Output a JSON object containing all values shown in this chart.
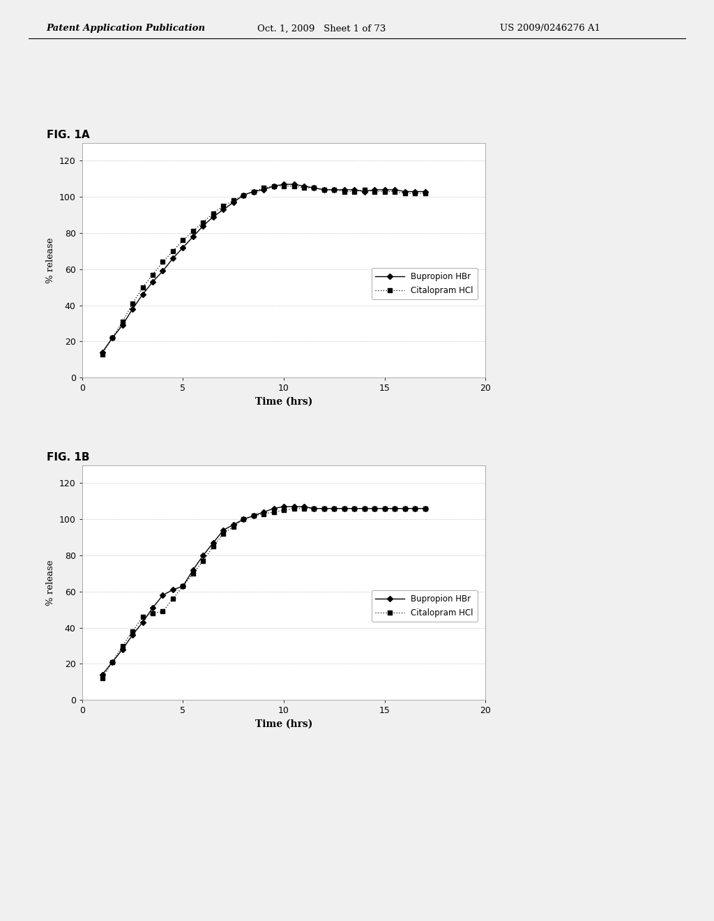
{
  "fig1A_label": "FIG. 1A",
  "fig1B_label": "FIG. 1B",
  "header_left": "Patent Application Publication",
  "header_center": "Oct. 1, 2009   Sheet 1 of 73",
  "header_right": "US 2009/0246276 A1",
  "chart1A": {
    "bupropion_x": [
      1,
      1.5,
      2,
      2.5,
      3,
      3.5,
      4,
      4.5,
      5,
      5.5,
      6,
      6.5,
      7,
      7.5,
      8,
      8.5,
      9,
      9.5,
      10,
      10.5,
      11,
      11.5,
      12,
      12.5,
      13,
      13.5,
      14,
      14.5,
      15,
      15.5,
      16,
      16.5,
      17
    ],
    "bupropion_y": [
      14,
      22,
      29,
      38,
      46,
      53,
      59,
      66,
      72,
      78,
      84,
      89,
      93,
      97,
      101,
      103,
      104,
      106,
      107,
      107,
      106,
      105,
      104,
      104,
      104,
      104,
      103,
      104,
      104,
      104,
      103,
      103,
      103
    ],
    "citalopram_x": [
      1,
      1.5,
      2,
      2.5,
      3,
      3.5,
      4,
      4.5,
      5,
      5.5,
      6,
      6.5,
      7,
      7.5,
      8,
      8.5,
      9,
      9.5,
      10,
      10.5,
      11,
      11.5,
      12,
      12.5,
      13,
      13.5,
      14,
      14.5,
      15,
      15.5,
      16,
      16.5,
      17
    ],
    "citalopram_y": [
      13,
      22,
      31,
      41,
      50,
      57,
      64,
      70,
      76,
      81,
      86,
      91,
      95,
      98,
      101,
      103,
      105,
      106,
      106,
      106,
      105,
      105,
      104,
      104,
      103,
      103,
      104,
      103,
      103,
      103,
      102,
      102,
      102
    ],
    "xlabel": "Time (hrs)",
    "ylabel": "% release",
    "xlim": [
      0,
      20
    ],
    "ylim": [
      0,
      130
    ],
    "yticks": [
      0,
      20,
      40,
      60,
      80,
      100,
      120
    ],
    "xticks": [
      0,
      5,
      10,
      15,
      20
    ],
    "legend1": "Bupropion HBr",
    "legend2": "Citalopram HCl"
  },
  "chart1B": {
    "bupropion_x": [
      1,
      1.5,
      2,
      2.5,
      3,
      3.5,
      4,
      4.5,
      5,
      5.5,
      6,
      6.5,
      7,
      7.5,
      8,
      8.5,
      9,
      9.5,
      10,
      10.5,
      11,
      11.5,
      12,
      12.5,
      13,
      13.5,
      14,
      14.5,
      15,
      15.5,
      16,
      16.5,
      17
    ],
    "bupropion_y": [
      14,
      21,
      28,
      36,
      43,
      51,
      58,
      61,
      63,
      72,
      80,
      87,
      94,
      97,
      100,
      102,
      104,
      106,
      107,
      107,
      107,
      106,
      106,
      106,
      106,
      106,
      106,
      106,
      106,
      106,
      106,
      106,
      106
    ],
    "citalopram_x": [
      1,
      1.5,
      2,
      2.5,
      3,
      3.5,
      4,
      4.5,
      5,
      5.5,
      6,
      6.5,
      7,
      7.5,
      8,
      8.5,
      9,
      9.5,
      10,
      10.5,
      11,
      11.5,
      12,
      12.5,
      13,
      13.5,
      14,
      14.5,
      15,
      15.5,
      16,
      16.5,
      17
    ],
    "citalopram_y": [
      12,
      21,
      30,
      38,
      46,
      48,
      49,
      56,
      63,
      70,
      77,
      85,
      92,
      96,
      100,
      102,
      103,
      104,
      105,
      106,
      106,
      106,
      106,
      106,
      106,
      106,
      106,
      106,
      106,
      106,
      106,
      106,
      106
    ],
    "xlabel": "Time (hrs)",
    "ylabel": "% release",
    "xlim": [
      0,
      20
    ],
    "ylim": [
      0,
      130
    ],
    "yticks": [
      0,
      20,
      40,
      60,
      80,
      100,
      120
    ],
    "xticks": [
      0,
      5,
      10,
      15,
      20
    ],
    "legend1": "Bupropion HBr",
    "legend2": "Citalopram HCl"
  },
  "page_bg": "#f0f0f0",
  "chart_bg": "#ffffff",
  "line_color": "#000000",
  "grid_color": "#b0b0b0",
  "border_color": "#888888",
  "chart_border": "#aaaaaa"
}
